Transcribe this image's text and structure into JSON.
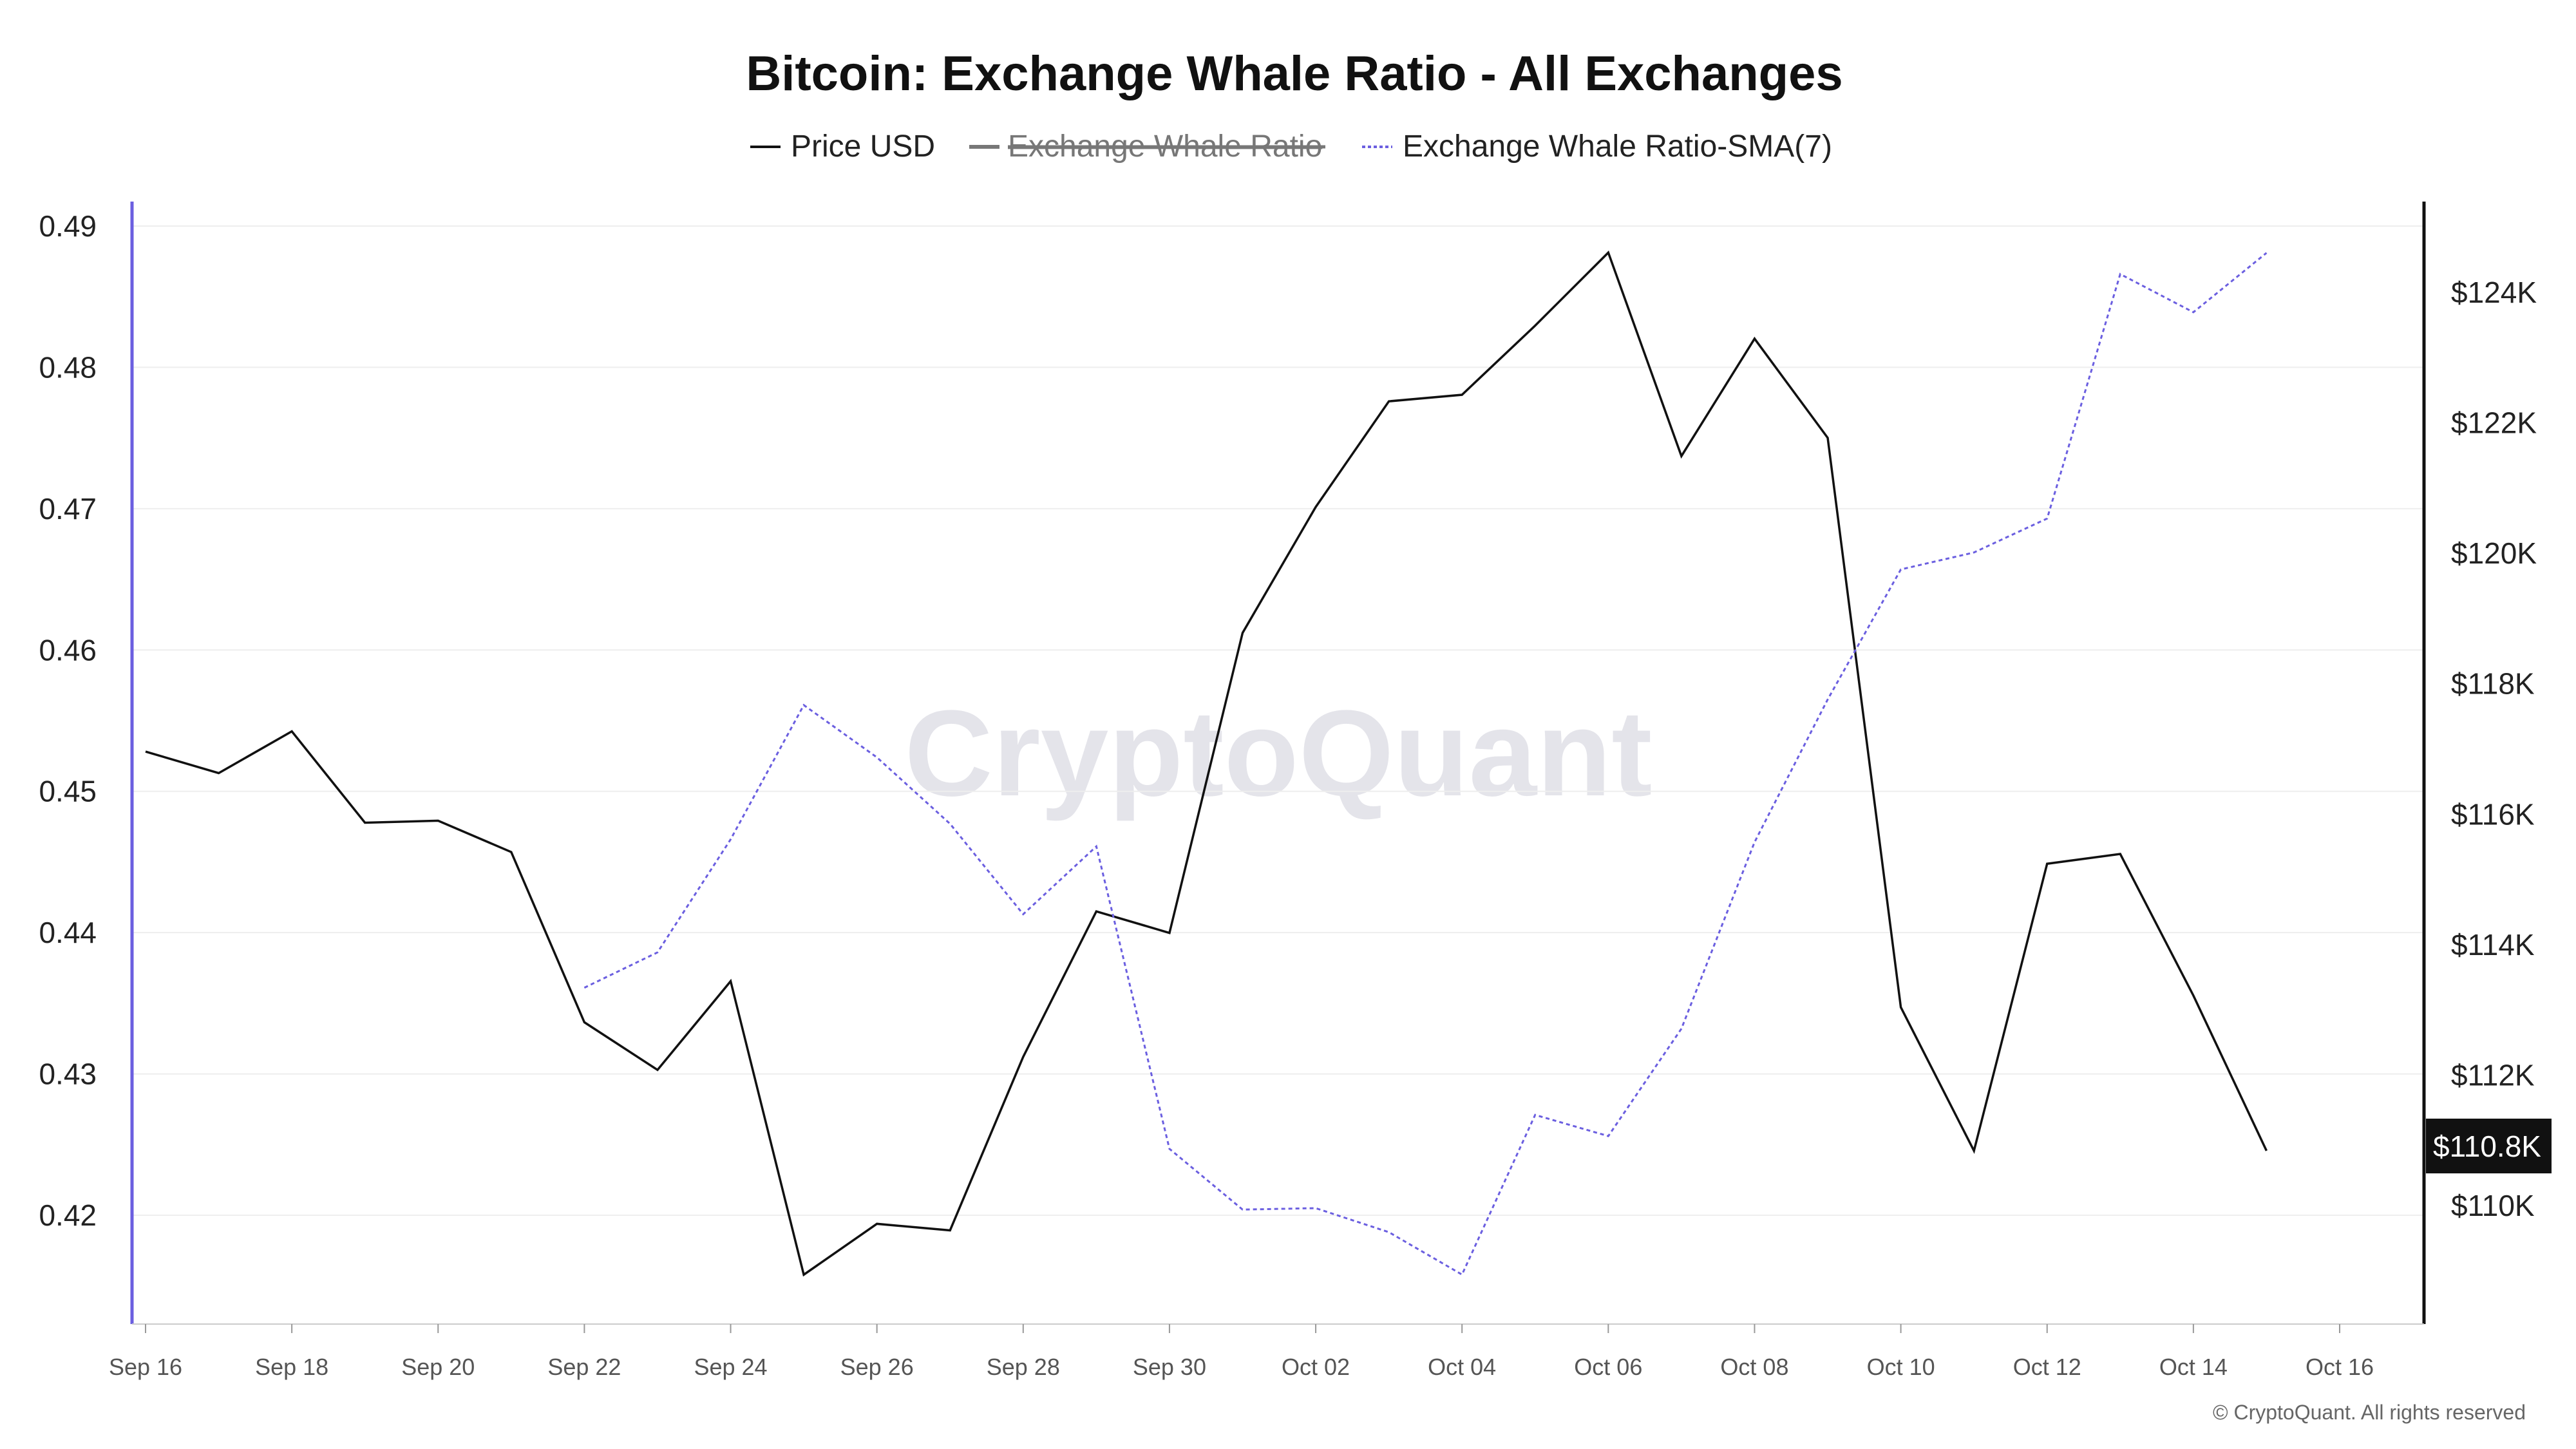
{
  "chart_data": {
    "type": "line",
    "title": "Bitcoin: Exchange Whale Ratio - All Exchanges",
    "legend": [
      {
        "label": "Price USD",
        "color": "#111111",
        "style": "solid",
        "hidden": false
      },
      {
        "label": "Exchange Whale Ratio",
        "color": "#777777",
        "style": "solid",
        "hidden": true
      },
      {
        "label": "Exchange Whale Ratio-SMA(7)",
        "color": "#6b5fe0",
        "style": "dotted",
        "hidden": false
      }
    ],
    "legend_position": "top-center",
    "x": [
      "2025-09-16",
      "2025-09-17",
      "2025-09-18",
      "2025-09-19",
      "2025-09-20",
      "2025-09-21",
      "2025-09-22",
      "2025-09-23",
      "2025-09-24",
      "2025-09-25",
      "2025-09-26",
      "2025-09-27",
      "2025-09-28",
      "2025-09-29",
      "2025-09-30",
      "2025-10-01",
      "2025-10-02",
      "2025-10-03",
      "2025-10-04",
      "2025-10-05",
      "2025-10-06",
      "2025-10-07",
      "2025-10-08",
      "2025-10-09",
      "2025-10-10",
      "2025-10-11",
      "2025-10-12",
      "2025-10-13",
      "2025-10-14",
      "2025-10-15"
    ],
    "x_tick_labels": [
      "Sep 16",
      "Sep 18",
      "Sep 20",
      "Sep 22",
      "Sep 24",
      "Sep 26",
      "Sep 28",
      "Sep 30",
      "Oct 02",
      "Oct 04",
      "Oct 06",
      "Oct 08",
      "Oct 10",
      "Oct 12",
      "Oct 14",
      "Oct 16"
    ],
    "xlim": [
      "2025-09-16",
      "2025-10-16"
    ],
    "series": [
      {
        "name": "Price USD",
        "axis": "right",
        "color": "#111111",
        "values": [
          116960,
          116630,
          117270,
          115870,
          115900,
          115420,
          112810,
          112080,
          113440,
          108940,
          109720,
          109620,
          112280,
          114510,
          114180,
          118780,
          120710,
          122330,
          122430,
          123490,
          124610,
          121490,
          123290,
          121770,
          113040,
          110840,
          115240,
          115390,
          113220,
          110840
        ]
      },
      {
        "name": "Exchange Whale Ratio-SMA(7)",
        "axis": "left",
        "color": "#6b5fe0",
        "values": [
          null,
          null,
          null,
          null,
          null,
          null,
          0.4361,
          0.4386,
          0.4466,
          0.4561,
          0.4524,
          0.4477,
          0.4413,
          0.4461,
          0.4247,
          0.4204,
          0.4205,
          0.4188,
          0.4158,
          0.4271,
          0.4256,
          0.4332,
          0.4464,
          0.4565,
          0.4657,
          0.4669,
          0.4693,
          0.4866,
          0.4839,
          0.4881
        ]
      }
    ],
    "left_axis": {
      "ylim": [
        0.4125,
        0.4918
      ],
      "ticks": [
        0.49,
        0.48,
        0.47,
        0.46,
        0.45,
        0.44,
        0.43,
        0.42
      ],
      "tick_labels": [
        "0.49",
        "0.48",
        "0.47",
        "0.46",
        "0.45",
        "0.44",
        "0.43",
        "0.42"
      ],
      "color": "#6b5fe0"
    },
    "right_axis": {
      "ylim": [
        108000,
        125600
      ],
      "ticks": [
        124000,
        122000,
        120000,
        118000,
        116000,
        114000,
        112000,
        110000
      ],
      "tick_labels": [
        "$124K",
        "$122K",
        "$120K",
        "$118K",
        "$116K",
        "$114K",
        "$112K",
        "$110K"
      ],
      "color": "#111111"
    },
    "last_price_label": "$110.8K",
    "grid": true
  },
  "watermark": "CryptoQuant",
  "copyright": "© CryptoQuant. All rights reserved"
}
